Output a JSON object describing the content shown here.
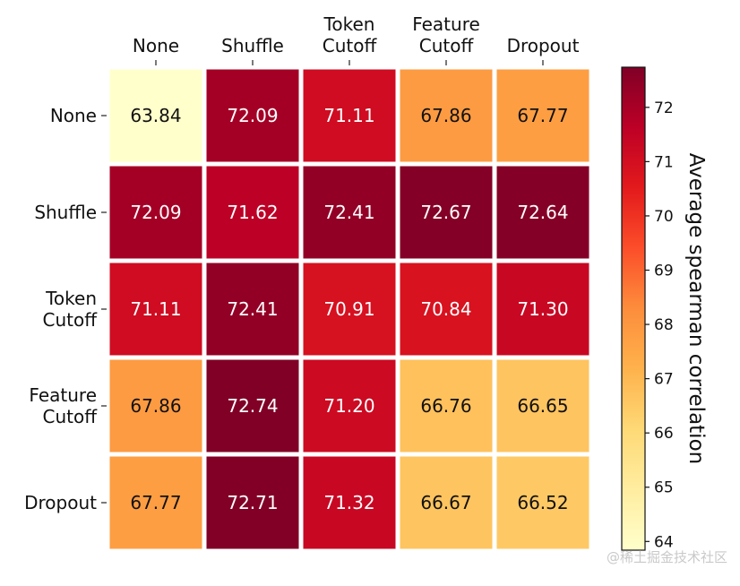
{
  "chart_data": {
    "type": "heatmap",
    "x_categories": [
      [
        "None"
      ],
      [
        "Shuffle"
      ],
      [
        "Token",
        "Cutoff"
      ],
      [
        "Feature",
        "Cutoff"
      ],
      [
        "Dropout"
      ]
    ],
    "y_categories": [
      [
        "None"
      ],
      [
        "Shuffle"
      ],
      [
        "Token",
        "Cutoff"
      ],
      [
        "Feature",
        "Cutoff"
      ],
      [
        "Dropout"
      ]
    ],
    "values": [
      [
        63.84,
        72.09,
        71.11,
        67.86,
        67.77
      ],
      [
        72.09,
        71.62,
        72.41,
        72.67,
        72.64
      ],
      [
        71.11,
        72.41,
        70.91,
        70.84,
        71.3
      ],
      [
        67.86,
        72.74,
        71.2,
        66.76,
        66.65
      ],
      [
        67.77,
        72.71,
        71.32,
        66.67,
        66.52
      ]
    ],
    "value_labels": [
      [
        "63.84",
        "72.09",
        "71.11",
        "67.86",
        "67.77"
      ],
      [
        "72.09",
        "71.62",
        "72.41",
        "72.67",
        "72.64"
      ],
      [
        "71.11",
        "72.41",
        "70.91",
        "70.84",
        "71.30"
      ],
      [
        "67.86",
        "72.74",
        "71.20",
        "66.76",
        "66.65"
      ],
      [
        "67.77",
        "72.71",
        "71.32",
        "66.67",
        "66.52"
      ]
    ],
    "colorbar": {
      "label": "Average spearman correlation",
      "range": [
        63.84,
        72.74
      ],
      "ticks": [
        64,
        65,
        66,
        67,
        68,
        69,
        70,
        71,
        72
      ],
      "tick_labels": [
        "64",
        "65",
        "66",
        "67",
        "68",
        "69",
        "70",
        "71",
        "72"
      ],
      "colormap": "YlOrRd"
    }
  },
  "watermark": "@稀土掘金技术社区"
}
